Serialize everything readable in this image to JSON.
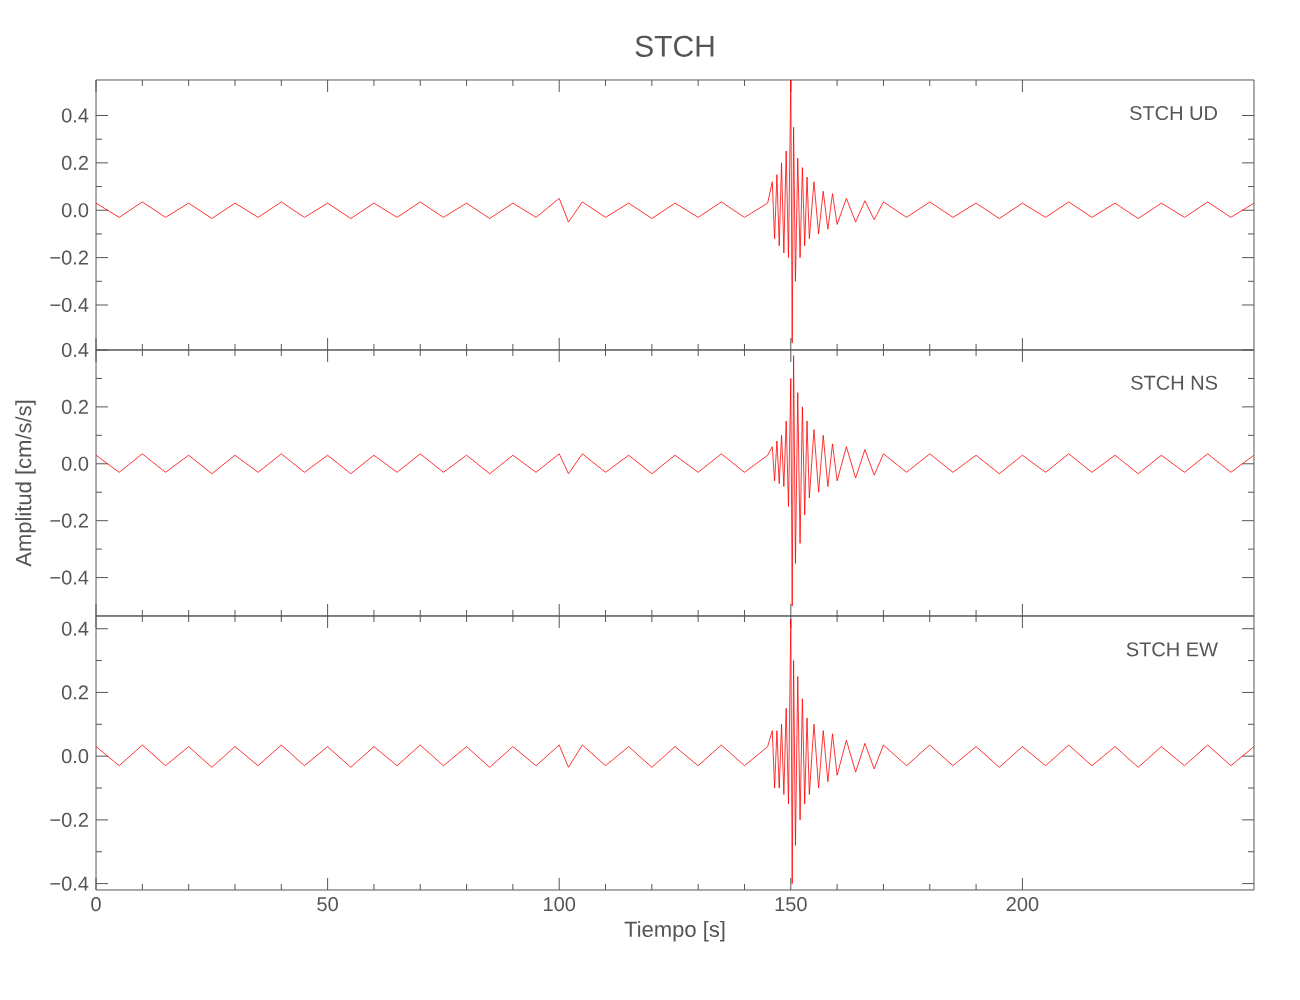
{
  "chart_data": [
    {
      "type": "line",
      "title": "STCH",
      "color": "#ff0000",
      "annotations": [
        "STCH UD"
      ],
      "tick_labels": "y",
      "xlim": [
        0,
        250
      ],
      "xticks": [
        0,
        50,
        100,
        150,
        200
      ],
      "ylim": [
        -0.59,
        0.55
      ],
      "yticks": [
        {
          "value": -0.4,
          "label": "−0.4"
        },
        {
          "value": -0.2,
          "label": "−0.2"
        },
        {
          "value": 0,
          "label": "0.0"
        },
        {
          "value": 0.2,
          "label": "0.2"
        },
        {
          "value": 0.4,
          "label": "0.4"
        }
      ],
      "x": [
        0,
        5,
        10,
        15,
        20,
        25,
        30,
        35,
        40,
        45,
        50,
        55,
        60,
        65,
        70,
        75,
        80,
        85,
        90,
        95,
        100,
        102,
        105,
        110,
        115,
        120,
        125,
        130,
        135,
        140,
        145,
        146,
        146.5,
        147,
        147.5,
        148,
        148.5,
        149,
        149.5,
        150,
        150.3,
        150.6,
        151,
        151.5,
        152,
        152.5,
        153,
        153.5,
        154,
        155,
        156,
        157,
        158,
        159,
        160,
        162,
        164,
        166,
        168,
        170,
        175,
        180,
        185,
        190,
        195,
        200,
        205,
        210,
        215,
        220,
        225,
        230,
        235,
        240,
        245,
        250
      ],
      "values": [
        0.03,
        -0.03,
        0.035,
        -0.03,
        0.03,
        -0.035,
        0.03,
        -0.03,
        0.035,
        -0.03,
        0.03,
        -0.035,
        0.03,
        -0.03,
        0.035,
        -0.03,
        0.03,
        -0.035,
        0.03,
        -0.03,
        0.05,
        -0.05,
        0.035,
        -0.03,
        0.03,
        -0.035,
        0.03,
        -0.03,
        0.035,
        -0.03,
        0.03,
        0.12,
        -0.12,
        0.15,
        -0.15,
        0.2,
        -0.18,
        0.25,
        -0.2,
        0.55,
        -0.56,
        0.35,
        -0.3,
        0.22,
        -0.2,
        0.18,
        -0.15,
        0.14,
        -0.12,
        0.12,
        -0.1,
        0.08,
        -0.08,
        0.07,
        -0.06,
        0.05,
        -0.05,
        0.04,
        -0.04,
        0.035,
        -0.03,
        0.035,
        -0.03,
        0.03,
        -0.035,
        0.03,
        -0.03,
        0.035,
        -0.03,
        0.03,
        -0.035,
        0.03,
        -0.03,
        0.035,
        -0.03,
        0.03
      ]
    },
    {
      "type": "line",
      "ylabel": "Amplitud [cm/s/s]",
      "color": "#ff0000",
      "annotations": [
        "STCH NS"
      ],
      "tick_labels": "y",
      "xlim": [
        0,
        250
      ],
      "xticks": [
        0,
        50,
        100,
        150,
        200
      ],
      "ylim": [
        -0.535,
        0.4
      ],
      "yticks": [
        {
          "value": -0.4,
          "label": "−0.4"
        },
        {
          "value": -0.2,
          "label": "−0.2"
        },
        {
          "value": 0,
          "label": "0.0"
        },
        {
          "value": 0.2,
          "label": "0.2"
        },
        {
          "value": 0.4,
          "label": "0.4"
        }
      ],
      "x": [
        0,
        5,
        10,
        15,
        20,
        25,
        30,
        35,
        40,
        45,
        50,
        55,
        60,
        65,
        70,
        75,
        80,
        85,
        90,
        95,
        100,
        102,
        105,
        110,
        115,
        120,
        125,
        130,
        135,
        140,
        145,
        146,
        146.5,
        147,
        147.5,
        148,
        148.5,
        149,
        149.5,
        150,
        150.3,
        150.6,
        151,
        151.5,
        152,
        152.5,
        153,
        153.5,
        154,
        155,
        156,
        157,
        158,
        159,
        160,
        162,
        164,
        166,
        168,
        170,
        175,
        180,
        185,
        190,
        195,
        200,
        205,
        210,
        215,
        220,
        225,
        230,
        235,
        240,
        245,
        250
      ],
      "values": [
        0.03,
        -0.03,
        0.035,
        -0.03,
        0.03,
        -0.035,
        0.03,
        -0.03,
        0.035,
        -0.03,
        0.03,
        -0.035,
        0.03,
        -0.03,
        0.035,
        -0.03,
        0.03,
        -0.035,
        0.03,
        -0.03,
        0.035,
        -0.035,
        0.035,
        -0.03,
        0.03,
        -0.035,
        0.03,
        -0.03,
        0.035,
        -0.03,
        0.03,
        0.06,
        -0.06,
        0.08,
        -0.07,
        0.1,
        -0.08,
        0.15,
        -0.15,
        0.3,
        -0.5,
        0.38,
        -0.35,
        0.25,
        -0.28,
        0.2,
        -0.18,
        0.15,
        -0.12,
        0.12,
        -0.1,
        0.1,
        -0.08,
        0.07,
        -0.06,
        0.06,
        -0.05,
        0.05,
        -0.04,
        0.035,
        -0.03,
        0.035,
        -0.03,
        0.03,
        -0.035,
        0.03,
        -0.03,
        0.035,
        -0.03,
        0.03,
        -0.035,
        0.03,
        -0.03,
        0.035,
        -0.03,
        0.03
      ]
    },
    {
      "type": "line",
      "xlabel": "Tiempo [s]",
      "color": "#ff0000",
      "annotations": [
        "STCH EW"
      ],
      "xlim": [
        0,
        250
      ],
      "xticks": [
        0,
        50,
        100,
        150,
        200
      ],
      "ylim": [
        -0.42,
        0.44
      ],
      "yticks": [
        {
          "value": -0.4,
          "label": "−0.4"
        },
        {
          "value": -0.2,
          "label": "−0.2"
        },
        {
          "value": 0,
          "label": "0.0"
        },
        {
          "value": 0.2,
          "label": "0.2"
        },
        {
          "value": 0.4,
          "label": "0.4"
        }
      ],
      "x": [
        0,
        5,
        10,
        15,
        20,
        25,
        30,
        35,
        40,
        45,
        50,
        55,
        60,
        65,
        70,
        75,
        80,
        85,
        90,
        95,
        100,
        102,
        105,
        110,
        115,
        120,
        125,
        130,
        135,
        140,
        145,
        146,
        146.5,
        147,
        147.5,
        148,
        148.5,
        149,
        149.5,
        150,
        150.3,
        150.6,
        151,
        151.5,
        152,
        152.5,
        153,
        153.5,
        154,
        155,
        156,
        157,
        158,
        159,
        160,
        162,
        164,
        166,
        168,
        170,
        175,
        180,
        185,
        190,
        195,
        200,
        205,
        210,
        215,
        220,
        225,
        230,
        235,
        240,
        245,
        250
      ],
      "values": [
        0.03,
        -0.03,
        0.035,
        -0.03,
        0.03,
        -0.035,
        0.03,
        -0.03,
        0.035,
        -0.03,
        0.03,
        -0.035,
        0.03,
        -0.03,
        0.035,
        -0.03,
        0.03,
        -0.035,
        0.03,
        -0.03,
        0.035,
        -0.035,
        0.035,
        -0.03,
        0.03,
        -0.035,
        0.03,
        -0.03,
        0.035,
        -0.03,
        0.03,
        0.08,
        -0.1,
        0.08,
        -0.1,
        0.1,
        -0.12,
        0.15,
        -0.15,
        0.43,
        -0.4,
        0.3,
        -0.28,
        0.25,
        -0.2,
        0.18,
        -0.15,
        0.12,
        -0.12,
        0.1,
        -0.1,
        0.08,
        -0.08,
        0.07,
        -0.06,
        0.05,
        -0.05,
        0.04,
        -0.04,
        0.035,
        -0.03,
        0.035,
        -0.03,
        0.03,
        -0.035,
        0.03,
        -0.03,
        0.035,
        -0.03,
        0.03,
        -0.035,
        0.03,
        -0.03,
        0.035,
        -0.03,
        0.03
      ]
    }
  ]
}
